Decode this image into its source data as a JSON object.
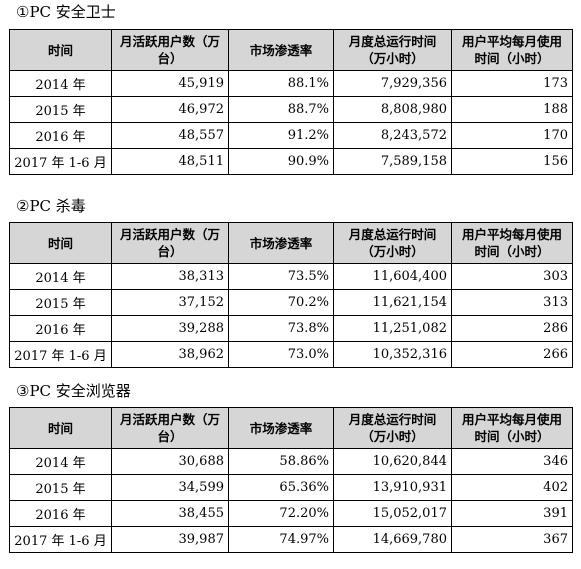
{
  "columns": [
    "时间",
    "月活跃用户数（万台）",
    "市场渗透率",
    "月度总运行时间（万小时）",
    "用户平均每月使用时间（小时）"
  ],
  "sections": [
    {
      "title": "①PC 安全卫士",
      "rows": [
        [
          "2014 年",
          "45,919",
          "88.1%",
          "7,929,356",
          "173"
        ],
        [
          "2015 年",
          "46,972",
          "88.7%",
          "8,808,980",
          "188"
        ],
        [
          "2016 年",
          "48,557",
          "91.2%",
          "8,243,572",
          "170"
        ],
        [
          "2017 年 1-6 月",
          "48,511",
          "90.9%",
          "7,589,158",
          "156"
        ]
      ]
    },
    {
      "title": "②PC 杀毒",
      "rows": [
        [
          "2014 年",
          "38,313",
          "73.5%",
          "11,604,400",
          "303"
        ],
        [
          "2015 年",
          "37,152",
          "70.2%",
          "11,621,154",
          "313"
        ],
        [
          "2016 年",
          "39,288",
          "73.8%",
          "11,251,082",
          "286"
        ],
        [
          "2017 年 1-6 月",
          "38,962",
          "73.0%",
          "10,352,316",
          "266"
        ]
      ]
    },
    {
      "title": "③PC 安全浏览器",
      "rows": [
        [
          "2014 年",
          "30,688",
          "58.86%",
          "10,620,844",
          "346"
        ],
        [
          "2015 年",
          "34,599",
          "65.36%",
          "13,910,931",
          "402"
        ],
        [
          "2016 年",
          "38,455",
          "72.20%",
          "15,052,017",
          "391"
        ],
        [
          "2017 年 1-6 月",
          "39,987",
          "74.97%",
          "14,669,780",
          "367"
        ]
      ]
    }
  ]
}
